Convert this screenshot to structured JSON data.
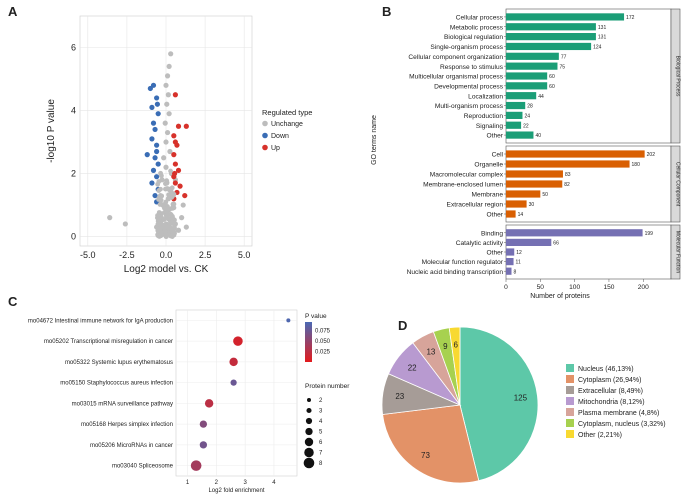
{
  "panels": {
    "a": "A",
    "b": "B",
    "c": "C",
    "d": "D"
  },
  "chart_data": [
    {
      "id": "A",
      "type": "scatter",
      "title": "",
      "xlabel": "Log2 model vs. CK",
      "ylabel": "-log10 P value",
      "xlim": [
        -5.5,
        5.5
      ],
      "ylim": [
        -0.3,
        7.0
      ],
      "xticks": [
        "-5.0",
        "-2.5",
        "0.0",
        "2.5",
        "5.0"
      ],
      "xtick_values": [
        -5,
        -2.5,
        0,
        2.5,
        5
      ],
      "yticks": [
        "0",
        "2",
        "4",
        "6"
      ],
      "ytick_values": [
        0,
        2,
        4,
        6
      ],
      "grid": true,
      "legend": {
        "title": "Regulated type",
        "position": "right",
        "entries": [
          "Unchange",
          "Down",
          "Up"
        ]
      },
      "series": [
        {
          "name": "Unchange",
          "color": "#bdbdbd",
          "points": [
            [
              0.1,
              0.1
            ],
            [
              0.2,
              0.25
            ],
            [
              -0.1,
              0.3
            ],
            [
              0.3,
              0.5
            ],
            [
              -0.3,
              0.6
            ],
            [
              0.0,
              0.8
            ],
            [
              0.4,
              0.9
            ],
            [
              -0.2,
              1.0
            ],
            [
              0.15,
              1.2
            ],
            [
              -0.35,
              1.3
            ],
            [
              0.3,
              1.5
            ],
            [
              0.05,
              1.7
            ],
            [
              -0.25,
              1.8
            ],
            [
              0.35,
              2.0
            ],
            [
              0.0,
              2.2
            ],
            [
              -0.15,
              2.5
            ],
            [
              0.25,
              2.7
            ],
            [
              0.0,
              3.0
            ],
            [
              0.1,
              3.3
            ],
            [
              -0.05,
              3.6
            ],
            [
              0.2,
              3.9
            ],
            [
              0.05,
              4.2
            ],
            [
              0.15,
              4.5
            ],
            [
              0.0,
              4.8
            ],
            [
              0.1,
              5.1
            ],
            [
              0.2,
              5.4
            ],
            [
              0.3,
              5.8
            ],
            [
              0.6,
              0.4
            ],
            [
              0.8,
              0.2
            ],
            [
              -0.6,
              0.3
            ],
            [
              1.0,
              0.6
            ],
            [
              1.3,
              0.3
            ],
            [
              1.1,
              1.0
            ],
            [
              0.7,
              1.4
            ],
            [
              -0.5,
              1.1
            ],
            [
              0.6,
              1.8
            ],
            [
              -3.6,
              0.6
            ],
            [
              -2.6,
              0.4
            ]
          ]
        },
        {
          "name": "Down",
          "color": "#3a6db5",
          "points": [
            [
              -0.8,
              4.8
            ],
            [
              -1.0,
              4.7
            ],
            [
              -0.6,
              4.4
            ],
            [
              -0.9,
              4.1
            ],
            [
              -0.5,
              3.9
            ],
            [
              -0.8,
              3.6
            ],
            [
              -0.7,
              3.4
            ],
            [
              -0.9,
              3.1
            ],
            [
              -0.6,
              2.9
            ],
            [
              -1.2,
              2.6
            ],
            [
              -0.7,
              2.5
            ],
            [
              -0.5,
              2.3
            ],
            [
              -0.8,
              2.1
            ],
            [
              -0.6,
              1.9
            ],
            [
              -0.9,
              1.7
            ],
            [
              -0.5,
              1.5
            ],
            [
              -0.7,
              1.3
            ],
            [
              -0.6,
              1.1
            ],
            [
              -0.55,
              4.2
            ],
            [
              -0.6,
              2.7
            ]
          ]
        },
        {
          "name": "Up",
          "color": "#d7322b",
          "points": [
            [
              0.6,
              4.5
            ],
            [
              1.3,
              3.5
            ],
            [
              0.8,
              3.5
            ],
            [
              0.5,
              3.2
            ],
            [
              0.7,
              2.9
            ],
            [
              0.5,
              2.6
            ],
            [
              0.6,
              2.3
            ],
            [
              0.8,
              2.1
            ],
            [
              0.5,
              1.9
            ],
            [
              0.6,
              1.7
            ],
            [
              0.9,
              1.6
            ],
            [
              0.7,
              1.4
            ],
            [
              1.2,
              1.3
            ],
            [
              0.5,
              1.2
            ],
            [
              0.6,
              3.0
            ],
            [
              0.55,
              2.0
            ]
          ]
        }
      ]
    },
    {
      "id": "B",
      "type": "bar",
      "orientation": "horizontal",
      "xlabel": "Number of proteins",
      "ylabel": "GO terms name",
      "xlim": [
        0,
        220
      ],
      "xticks": [
        "0",
        "50",
        "100",
        "150",
        "200"
      ],
      "xtick_values": [
        0,
        50,
        100,
        150,
        200
      ],
      "groups": [
        {
          "name": "Biological Process",
          "color": "#1b9e77",
          "categories": [
            "Cellular process",
            "Metabolic process",
            "Biological regulation",
            "Single-organism process",
            "Cellular component organization",
            "Response to stimulus",
            "Multicellular organismal process",
            "Developmental process",
            "Localization",
            "Multi-organism process",
            "Reproduction",
            "Signaling",
            "Other"
          ],
          "values": [
            172,
            131,
            131,
            124,
            77,
            75,
            60,
            60,
            44,
            28,
            24,
            22,
            40
          ]
        },
        {
          "name": "Cellular Component",
          "color": "#d95f02",
          "categories": [
            "Cell",
            "Organelle",
            "Macromolecular complex",
            "Membrane-enclosed lumen",
            "Membrane",
            "Extracellular region",
            "Other"
          ],
          "values": [
            202,
            180,
            83,
            82,
            50,
            30,
            14
          ]
        },
        {
          "name": "Molecular Function",
          "color": "#7570b3",
          "categories": [
            "Binding",
            "Catalytic activity",
            "Other",
            "Molecular function regulator",
            "Nucleic acid binding transcription"
          ],
          "values": [
            199,
            66,
            12,
            11,
            8
          ]
        }
      ]
    },
    {
      "id": "C",
      "type": "scatter",
      "subtype": "bubble",
      "xlabel": "Log2 fold enrichment",
      "xlim": [
        0.6,
        4.8
      ],
      "xticks": [
        "1",
        "2",
        "3",
        "4"
      ],
      "xtick_values": [
        1,
        2,
        3,
        4
      ],
      "categories": [
        "mo04672 Intestinal immune network for IgA production",
        "mo05202 Transcriptional misregulation in cancer",
        "mo05322 Systemic lupus erythematosus",
        "mo05150 Staphylococcus aureus infection",
        "mo03015 mRNA surveillance pathway",
        "mo05168 Herpes simplex infection",
        "mo05206 MicroRNAs in cancer",
        "mo03040 Spliceosome"
      ],
      "x": [
        4.5,
        2.75,
        2.6,
        2.6,
        1.75,
        1.55,
        1.55,
        1.3
      ],
      "protein_number": [
        2,
        7,
        6,
        4,
        6,
        5,
        5,
        8
      ],
      "p_value": [
        0.092,
        0.01,
        0.02,
        0.075,
        0.025,
        0.06,
        0.07,
        0.04
      ],
      "color_legend": {
        "title": "P value",
        "ticks": [
          "0.075",
          "0.050",
          "0.025"
        ],
        "tick_values": [
          0.075,
          0.05,
          0.025
        ],
        "range": [
          0.0,
          0.095
        ],
        "low_color": "#e31a1c",
        "high_color": "#4a69b4"
      },
      "size_legend": {
        "title": "Protein number",
        "values": [
          2,
          3,
          4,
          5,
          6,
          7,
          8
        ],
        "labels": [
          "2",
          "3",
          "4",
          "5",
          "6",
          "7",
          "8"
        ]
      }
    },
    {
      "id": "D",
      "type": "pie",
      "slices": [
        {
          "label": "Nucleus (46,13%)",
          "value": 125,
          "value_label": "125",
          "color": "#5dc8a8"
        },
        {
          "label": "Cytoplasm (26,94%)",
          "value": 73,
          "value_label": "73",
          "color": "#e39267"
        },
        {
          "label": "Extracellular (8,49%)",
          "value": 23,
          "value_label": "23",
          "color": "#a69c97"
        },
        {
          "label": "Mitochondria (8,12%)",
          "value": 22,
          "value_label": "22",
          "color": "#b89ad0"
        },
        {
          "label": "Plasma membrane (4,8%)",
          "value": 13,
          "value_label": "13",
          "color": "#d7a49a"
        },
        {
          "label": "Cytoplasm, nucleus (3,32%)",
          "value": 9,
          "value_label": "9",
          "color": "#a7d14f"
        },
        {
          "label": "Other (2,21%)",
          "value": 6,
          "value_label": "6",
          "color": "#f8d931"
        }
      ],
      "legend_position": "right"
    }
  ]
}
